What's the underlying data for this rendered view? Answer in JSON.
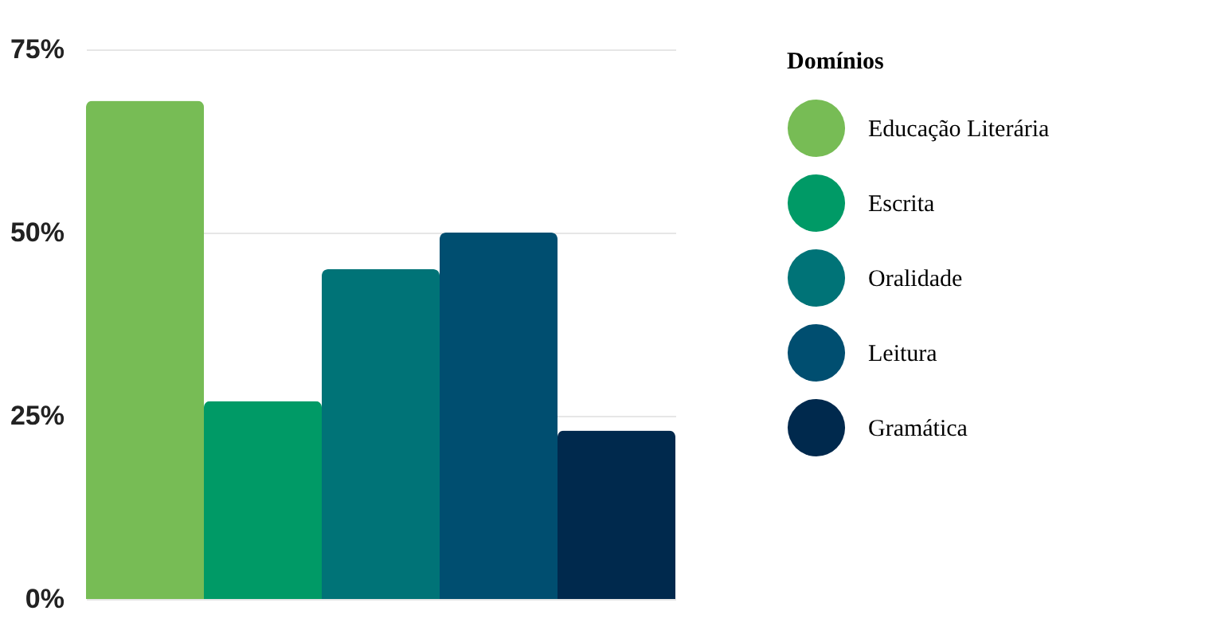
{
  "chart_data": {
    "type": "bar",
    "categories": [
      null
    ],
    "series": [
      {
        "name": "Educação Literária",
        "color": "#77bc55",
        "values": [
          68
        ]
      },
      {
        "name": "Escrita",
        "color": "#009a66",
        "values": [
          27
        ]
      },
      {
        "name": "Oralidade",
        "color": "#007377",
        "values": [
          45
        ]
      },
      {
        "name": "Leitura",
        "color": "#004e70",
        "values": [
          50
        ]
      },
      {
        "name": "Gramática",
        "color": "#00294d",
        "values": [
          23
        ]
      }
    ],
    "ylim": [
      0,
      75
    ],
    "yticks": [
      {
        "value": 0,
        "label": "0%"
      },
      {
        "value": 25,
        "label": "25%"
      },
      {
        "value": 50,
        "label": "50%"
      },
      {
        "value": 75,
        "label": "75%"
      }
    ],
    "grid": "y",
    "legend": "right",
    "legend_title": "Domínios",
    "tick_labels": "y"
  }
}
